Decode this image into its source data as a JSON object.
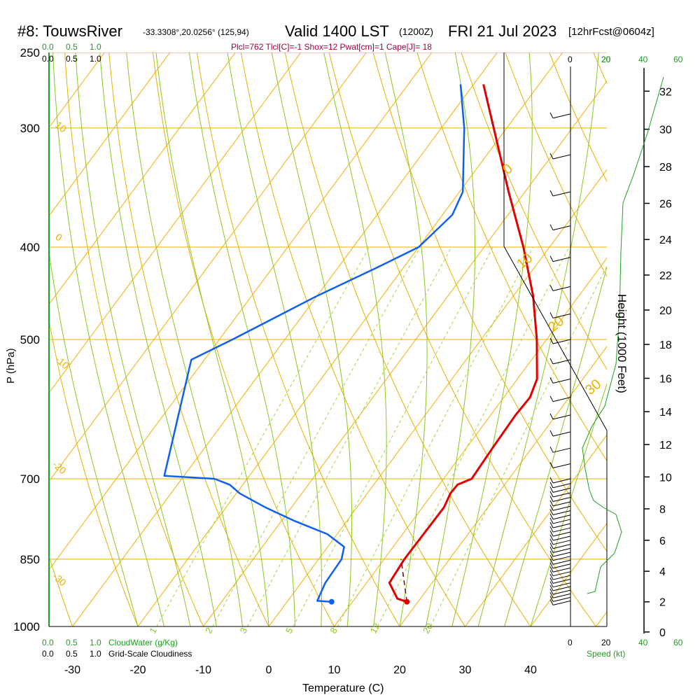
{
  "header": {
    "station": "#8: TouwsRiver",
    "location": "-33.3308°,20.0256° (125,94)",
    "valid": "Valid 1400 LST",
    "utc": "(1200Z)",
    "date": "FRI 21 Jul 2023",
    "forecast": "[12hrFcst@0604z]",
    "params": "Plcl=762 Tlcl[C]=-1 Shox=12 Pwat[cm]=1 Cape[J]= 18"
  },
  "colors": {
    "isotherm": "#f0b000",
    "dry_adiabat": "#e8b000",
    "moist_adiabat": "#8cc820",
    "mixing_ratio": "#a8d040",
    "temperature": "#e00000",
    "dewpoint": "#1060f0",
    "parcel": "#800020",
    "cloud": "#20a020",
    "speed": "#20a020",
    "params_text": "#a00040"
  },
  "scales": {
    "cloudwater_ticks_top_green": [
      "0.0",
      "0.5",
      "1.0"
    ],
    "cloudiness_ticks_top_black": [
      "0.0",
      "0.5",
      "1.0"
    ],
    "cloudwater_ticks_bottom": [
      "0.0",
      "0.5",
      "1.0"
    ],
    "cloudwater_label": "CloudWater (g/Kg)",
    "cloudiness_ticks_bottom": [
      "0.0",
      "0.5",
      "1.0"
    ],
    "cloudiness_label": "Grid-Scale Cloudiness",
    "speed_ticks_top_black": [
      "0",
      "20"
    ],
    "speed_ticks_top_green": [
      "20",
      "40",
      "60"
    ],
    "speed_ticks_bottom_black": [
      "0",
      "20"
    ],
    "speed_ticks_bottom_green": [
      "40",
      "60"
    ],
    "speed_label": "Speed (kt)"
  },
  "chart_data": {
    "type": "skew-t",
    "xlabel": "Temperature (C)",
    "ylabel": "P (hPa)",
    "y2label": "Height (1000 Feet)",
    "x_ticks": [
      -30,
      -20,
      -10,
      0,
      10,
      20,
      30,
      40
    ],
    "p_ticks": [
      250,
      300,
      400,
      500,
      700,
      850,
      1000
    ],
    "height_ticks_kft": [
      0,
      2,
      4,
      6,
      8,
      10,
      12,
      14,
      16,
      18,
      20,
      22,
      24,
      26,
      28,
      30,
      32
    ],
    "temp_range": [
      -35,
      52
    ],
    "p_range": [
      1000,
      250
    ],
    "isotherm_labels": [
      "10",
      "0",
      "-10",
      "-20",
      "-30"
    ],
    "isotherm_labels_right": [
      "0",
      "10",
      "20",
      "30"
    ],
    "mixing_ratio_labels": [
      "1",
      "2",
      "3",
      "5",
      "8",
      "12",
      "20"
    ],
    "temperature_profile": [
      {
        "p": 942,
        "t": 18.3
      },
      {
        "p": 935,
        "t": 16.5
      },
      {
        "p": 900,
        "t": 13.5
      },
      {
        "p": 850,
        "t": 13.1
      },
      {
        "p": 800,
        "t": 13.2
      },
      {
        "p": 750,
        "t": 13.3
      },
      {
        "p": 725,
        "t": 12.7
      },
      {
        "p": 710,
        "t": 12.8
      },
      {
        "p": 700,
        "t": 14.3
      },
      {
        "p": 650,
        "t": 14.0
      },
      {
        "p": 600,
        "t": 13.8
      },
      {
        "p": 575,
        "t": 14.0
      },
      {
        "p": 550,
        "t": 13.0
      },
      {
        "p": 500,
        "t": 8.5
      },
      {
        "p": 450,
        "t": 3.0
      },
      {
        "p": 400,
        "t": -4.0
      },
      {
        "p": 350,
        "t": -12.5
      },
      {
        "p": 300,
        "t": -22.0
      },
      {
        "p": 270,
        "t": -28.5
      }
    ],
    "dewpoint_profile": [
      {
        "p": 942,
        "t": 6.8
      },
      {
        "p": 940,
        "t": 4.5
      },
      {
        "p": 900,
        "t": 3.7
      },
      {
        "p": 850,
        "t": 3.5
      },
      {
        "p": 825,
        "t": 2.5
      },
      {
        "p": 800,
        "t": -1.5
      },
      {
        "p": 775,
        "t": -8.0
      },
      {
        "p": 750,
        "t": -14.0
      },
      {
        "p": 725,
        "t": -19.5
      },
      {
        "p": 710,
        "t": -22.0
      },
      {
        "p": 700,
        "t": -25.0
      },
      {
        "p": 695,
        "t": -33.0
      },
      {
        "p": 525,
        "t": -42.0
      },
      {
        "p": 500,
        "t": -38.0
      },
      {
        "p": 450,
        "t": -30.0
      },
      {
        "p": 420,
        "t": -24.0
      },
      {
        "p": 400,
        "t": -20.0
      },
      {
        "p": 370,
        "t": -18.5
      },
      {
        "p": 350,
        "t": -19.5
      },
      {
        "p": 300,
        "t": -26.5
      },
      {
        "p": 270,
        "t": -32.0
      }
    ],
    "parcel_path": [
      {
        "p": 942,
        "t": 18.3
      },
      {
        "p": 850,
        "t": 12.6
      }
    ]
  }
}
